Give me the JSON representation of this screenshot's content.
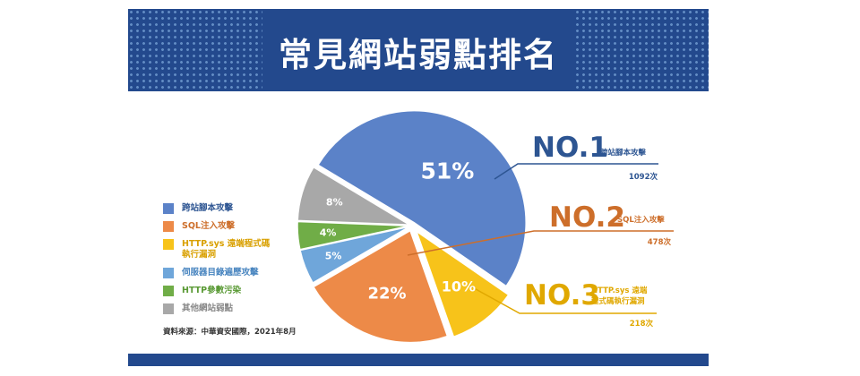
{
  "title": "常見網站弱點排名",
  "source": "資料來源：中華資安國際，2021年8月",
  "colors": {
    "banner": "#23498d",
    "xss": "#5b82c8",
    "sql": "#ed8a48",
    "http_sys": "#f7c31a",
    "dir": "#6fa6da",
    "hpp": "#70ad47",
    "other": "#a8a8a8",
    "rank1": "#2d5592",
    "rank2": "#cd6e2a",
    "rank3": "#e0a800"
  },
  "chart_data": {
    "type": "pie",
    "title": "常見網站弱點排名",
    "slices": [
      {
        "name": "跨站腳本攻擊",
        "value": 51,
        "label": "51%",
        "color": "#5b82c8"
      },
      {
        "name": "HTTP.sys 遠端程式碼執行漏洞",
        "value": 10,
        "label": "10%",
        "color": "#f7c31a"
      },
      {
        "name": "SQL注入攻擊",
        "value": 22,
        "label": "22%",
        "color": "#ed8a48"
      },
      {
        "name": "伺服器目錄遍歷攻擊",
        "value": 5,
        "label": "5%",
        "color": "#6fa6da"
      },
      {
        "name": "HTTP參數污染",
        "value": 4,
        "label": "4%",
        "color": "#70ad47"
      },
      {
        "name": "其他網站弱點",
        "value": 8,
        "label": "8%",
        "color": "#a8a8a8"
      }
    ],
    "start_angle_deg": 211
  },
  "legend": [
    {
      "label": "跨站腳本攻擊",
      "color": "#5b82c8",
      "text_color": "#2d5592"
    },
    {
      "label": "SQL注入攻擊",
      "color": "#ed8a48",
      "text_color": "#cd6e2a"
    },
    {
      "label": "HTTP.sys 遠端程式碼\n執行漏洞",
      "color": "#f7c31a",
      "text_color": "#d9a000"
    },
    {
      "label": "伺服器目錄遍歷攻擊",
      "color": "#6fa6da",
      "text_color": "#4a86c0"
    },
    {
      "label": "HTTP參數污染",
      "color": "#70ad47",
      "text_color": "#5a9a35"
    },
    {
      "label": "其他網站弱點",
      "color": "#a8a8a8",
      "text_color": "#888888"
    }
  ],
  "callouts": {
    "no1": {
      "rank": "NO.1",
      "name": "跨站腳本攻擊",
      "count": "1092次"
    },
    "no2": {
      "rank": "NO.2",
      "name": "SQL注入攻擊",
      "count": "478次"
    },
    "no3": {
      "rank": "NO.3",
      "name": "HTTP.sys 遠端\n程式碼執行漏洞",
      "count": "218次"
    }
  }
}
